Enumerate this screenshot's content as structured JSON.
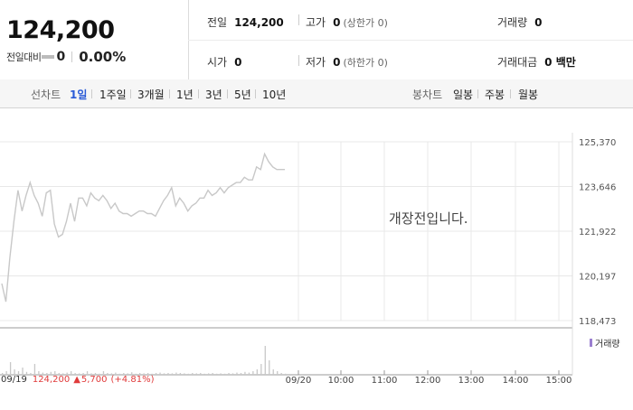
{
  "summary": {
    "current_price": "124,200",
    "change_label": "전일대비",
    "change_value": "0",
    "change_rate": "0.00%"
  },
  "stats": {
    "prev_close": {
      "label": "전일",
      "value": "124,200"
    },
    "high": {
      "label": "고가",
      "value": "0",
      "sub": "(상한가 0)"
    },
    "volume": {
      "label": "거래량",
      "value": "0"
    },
    "open": {
      "label": "시가",
      "value": "0"
    },
    "low": {
      "label": "저가",
      "value": "0",
      "sub": "(하한가 0)"
    },
    "turnover": {
      "label": "거래대금",
      "value": "0 백만"
    }
  },
  "line_chart_tabs": {
    "title": "선차트",
    "items": [
      "1일",
      "1주일",
      "3개월",
      "1년",
      "3년",
      "5년",
      "10년"
    ],
    "active": "1일"
  },
  "candle_chart_tabs": {
    "title": "봉차트",
    "items": [
      "일봉",
      "주봉",
      "월봉"
    ]
  },
  "notice": "개장전입니다.",
  "volume_legend": "거래량",
  "footer": {
    "date": "09/19",
    "price": "124,200",
    "arrow": "▲",
    "change": "5,700",
    "rate": "(+4.81%)"
  },
  "chart_data": {
    "type": "line",
    "y_ticks": [
      "125,370",
      "123,646",
      "121,922",
      "120,197",
      "118,473"
    ],
    "ylim": [
      118473,
      125370
    ],
    "x_ticks": [
      "09/20",
      "10:00",
      "11:00",
      "12:00",
      "13:00",
      "14:00",
      "15:00"
    ],
    "previous_session": {
      "date": "09/19",
      "x": [
        0,
        2,
        4,
        6,
        8,
        10,
        12,
        14,
        16,
        18,
        20,
        22,
        24,
        26,
        28,
        30,
        32,
        34,
        36,
        38,
        40,
        42,
        44,
        46,
        48,
        50,
        52,
        54,
        56,
        58,
        60,
        62,
        64,
        66,
        68,
        70,
        72,
        74,
        76,
        78,
        80,
        82,
        84,
        86,
        88,
        90,
        92,
        94,
        96,
        98,
        100,
        102,
        104,
        106,
        108,
        110,
        112,
        114,
        116,
        118,
        120,
        122,
        124,
        126,
        128,
        130,
        132,
        134,
        136,
        138,
        140
      ],
      "values": [
        119900,
        119200,
        120900,
        122300,
        123500,
        122700,
        123300,
        123800,
        123300,
        123000,
        122500,
        123400,
        123500,
        122200,
        121700,
        121800,
        122300,
        123000,
        122300,
        123200,
        123200,
        122900,
        123400,
        123200,
        123100,
        123300,
        123100,
        122800,
        123000,
        122700,
        122600,
        122600,
        122500,
        122600,
        122700,
        122700,
        122600,
        122600,
        122500,
        122800,
        123100,
        123300,
        123600,
        122900,
        123200,
        123000,
        122700,
        122900,
        123000,
        123200,
        123200,
        123500,
        123300,
        123400,
        123600,
        123400,
        123600,
        123700,
        123800,
        123800,
        124000,
        123900,
        123900,
        124400,
        124300,
        124900,
        124600,
        124400,
        124300,
        124300,
        124300
      ],
      "volume": [
        0.05,
        0.1,
        0.35,
        0.15,
        0.1,
        0.2,
        0.08,
        0.05,
        0.3,
        0.1,
        0.06,
        0.05,
        0.08,
        0.1,
        0.05,
        0.04,
        0.06,
        0.1,
        0.05,
        0.04,
        0.05,
        0.1,
        0.04,
        0.05,
        0.03,
        0.1,
        0.05,
        0.04,
        0.06,
        0.03,
        0.05,
        0.04,
        0.07,
        0.03,
        0.05,
        0.04,
        0.05,
        0.03,
        0.05,
        0.06,
        0.04,
        0.05,
        0.04,
        0.06,
        0.05,
        0.04,
        0.03,
        0.05,
        0.04,
        0.05,
        0.03,
        0.04,
        0.05,
        0.03,
        0.04,
        0.03,
        0.05,
        0.04,
        0.06,
        0.05,
        0.08,
        0.06,
        0.1,
        0.15,
        0.3,
        0.8,
        0.4,
        0.15,
        0.1,
        0.05,
        0.03
      ]
    }
  },
  "colors": {
    "line": "#c8c8c8",
    "volume": "#c8c8c8",
    "grid": "#e8e8e8",
    "active_tab": "#2a5bd7",
    "up": "#e03b3b",
    "legend": "#9b7fd0"
  }
}
